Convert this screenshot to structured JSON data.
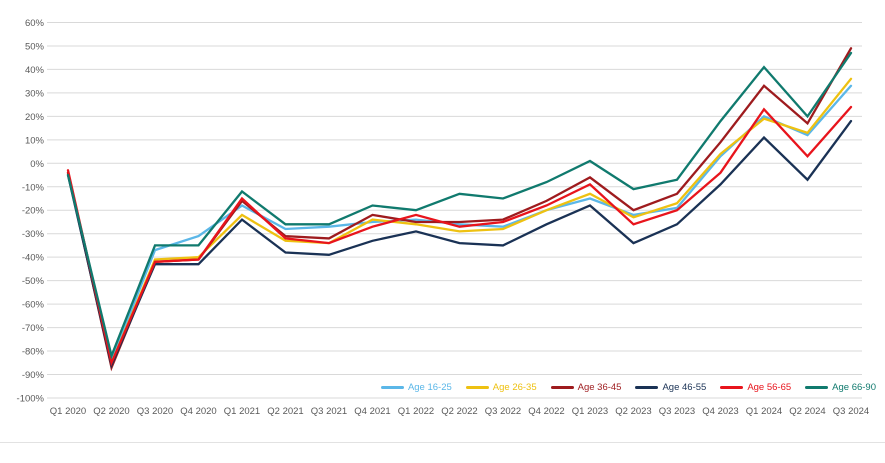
{
  "chart_data": {
    "type": "line",
    "title": "",
    "xlabel": "",
    "ylabel": "",
    "ylim": [
      -100,
      60
    ],
    "ytick_step": 10,
    "grid": true,
    "legend_position": "bottom-right-inside",
    "y_tick_labels": [
      "60%",
      "50%",
      "40%",
      "30%",
      "20%",
      "10%",
      "0%",
      "-10%",
      "-20%",
      "-30%",
      "-40%",
      "-50%",
      "-60%",
      "-70%",
      "-80%",
      "-90%",
      "-100%"
    ],
    "categories": [
      "Q1 2020",
      "Q2 2020",
      "Q3 2020",
      "Q4 2020",
      "Q1 2021",
      "Q2 2021",
      "Q3 2021",
      "Q4 2021",
      "Q1 2022",
      "Q2 2022",
      "Q3 2022",
      "Q4 2022",
      "Q1 2023",
      "Q2 2023",
      "Q3 2023",
      "Q4 2023",
      "Q1 2024",
      "Q2 2024",
      "Q3 2024"
    ],
    "series": [
      {
        "name": "Age 16-25",
        "color": "#5BB7E8",
        "values": [
          -4,
          -84,
          -37,
          -31,
          -18,
          -28,
          -27,
          -25,
          -24,
          -26,
          -27,
          -20,
          -15,
          -22,
          -19,
          3,
          20,
          12,
          33
        ]
      },
      {
        "name": "Age 26-35",
        "color": "#EEC111",
        "values": [
          -4,
          -85,
          -41,
          -40,
          -22,
          -33,
          -34,
          -24,
          -26,
          -29,
          -28,
          -20,
          -13,
          -23,
          -17,
          4,
          19,
          13,
          36
        ]
      },
      {
        "name": "Age 36-45",
        "color": "#9E1B1E",
        "values": [
          -4,
          -87,
          -42,
          -41,
          -16,
          -31,
          -32,
          -22,
          -25,
          -25,
          -24,
          -16,
          -6,
          -20,
          -13,
          9,
          33,
          17,
          49
        ]
      },
      {
        "name": "Age 46-55",
        "color": "#1A3255",
        "values": [
          -5,
          -86,
          -43,
          -43,
          -24,
          -38,
          -39,
          -33,
          -29,
          -34,
          -35,
          -26,
          -18,
          -34,
          -26,
          -9,
          11,
          -7,
          18
        ]
      },
      {
        "name": "Age 56-65",
        "color": "#E8141C",
        "values": [
          -3,
          -85,
          -42,
          -41,
          -15,
          -32,
          -34,
          -27,
          -22,
          -27,
          -25,
          -18,
          -9,
          -26,
          -20,
          -4,
          23,
          3,
          24
        ]
      },
      {
        "name": "Age 66-90",
        "color": "#107A6E",
        "values": [
          -5,
          -82,
          -35,
          -35,
          -12,
          -26,
          -26,
          -18,
          -20,
          -13,
          -15,
          -8,
          1,
          -11,
          -7,
          18,
          41,
          20,
          47
        ]
      }
    ],
    "colors": {
      "gridline": "#d9d9d9",
      "tick_text": "#595959",
      "background": "#ffffff"
    }
  }
}
